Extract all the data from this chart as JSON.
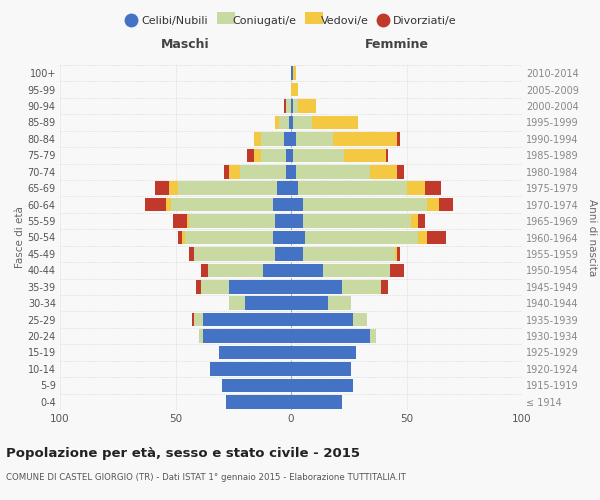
{
  "age_groups": [
    "100+",
    "95-99",
    "90-94",
    "85-89",
    "80-84",
    "75-79",
    "70-74",
    "65-69",
    "60-64",
    "55-59",
    "50-54",
    "45-49",
    "40-44",
    "35-39",
    "30-34",
    "25-29",
    "20-24",
    "15-19",
    "10-14",
    "5-9",
    "0-4"
  ],
  "birth_years": [
    "≤ 1914",
    "1915-1919",
    "1920-1924",
    "1925-1929",
    "1930-1934",
    "1935-1939",
    "1940-1944",
    "1945-1949",
    "1950-1954",
    "1955-1959",
    "1960-1964",
    "1965-1969",
    "1970-1974",
    "1975-1979",
    "1980-1984",
    "1985-1989",
    "1990-1994",
    "1995-1999",
    "2000-2004",
    "2005-2009",
    "2010-2014"
  ],
  "males": {
    "celibe": [
      0,
      0,
      0,
      1,
      3,
      2,
      2,
      6,
      8,
      7,
      8,
      7,
      12,
      27,
      20,
      38,
      38,
      31,
      35,
      30,
      28
    ],
    "coniugato": [
      0,
      0,
      2,
      4,
      10,
      11,
      20,
      43,
      44,
      37,
      38,
      35,
      24,
      12,
      7,
      4,
      2,
      0,
      0,
      0,
      0
    ],
    "vedovo": [
      0,
      0,
      0,
      2,
      3,
      3,
      5,
      4,
      2,
      1,
      1,
      0,
      0,
      0,
      0,
      0,
      0,
      0,
      0,
      0,
      0
    ],
    "divorziato": [
      0,
      0,
      1,
      0,
      0,
      3,
      2,
      6,
      9,
      6,
      2,
      2,
      3,
      2,
      0,
      1,
      0,
      0,
      0,
      0,
      0
    ]
  },
  "females": {
    "nubile": [
      1,
      0,
      1,
      1,
      2,
      1,
      2,
      3,
      5,
      5,
      6,
      5,
      14,
      22,
      16,
      27,
      34,
      28,
      26,
      27,
      22
    ],
    "coniugata": [
      0,
      0,
      2,
      8,
      16,
      22,
      32,
      47,
      54,
      47,
      49,
      40,
      29,
      17,
      10,
      6,
      3,
      0,
      0,
      0,
      0
    ],
    "vedova": [
      1,
      3,
      8,
      20,
      28,
      18,
      12,
      8,
      5,
      3,
      4,
      1,
      0,
      0,
      0,
      0,
      0,
      0,
      0,
      0,
      0
    ],
    "divorziata": [
      0,
      0,
      0,
      0,
      1,
      1,
      3,
      7,
      6,
      3,
      8,
      1,
      6,
      3,
      0,
      0,
      0,
      0,
      0,
      0,
      0
    ]
  },
  "colors": {
    "celibe": "#4472c4",
    "coniugato": "#c8d9a2",
    "vedovo": "#f5c842",
    "divorziato": "#c0392b"
  },
  "xlim": 100,
  "title": "Popolazione per età, sesso e stato civile - 2015",
  "subtitle": "COMUNE DI CASTEL GIORGIO (TR) - Dati ISTAT 1° gennaio 2015 - Elaborazione TUTTITALIA.IT",
  "ylabel_left": "Fasce di età",
  "ylabel_right": "Anni di nascita",
  "xlabel_left": "Maschi",
  "xlabel_right": "Femmine",
  "bg_color": "#f8f8f8",
  "grid_color": "#cccccc"
}
